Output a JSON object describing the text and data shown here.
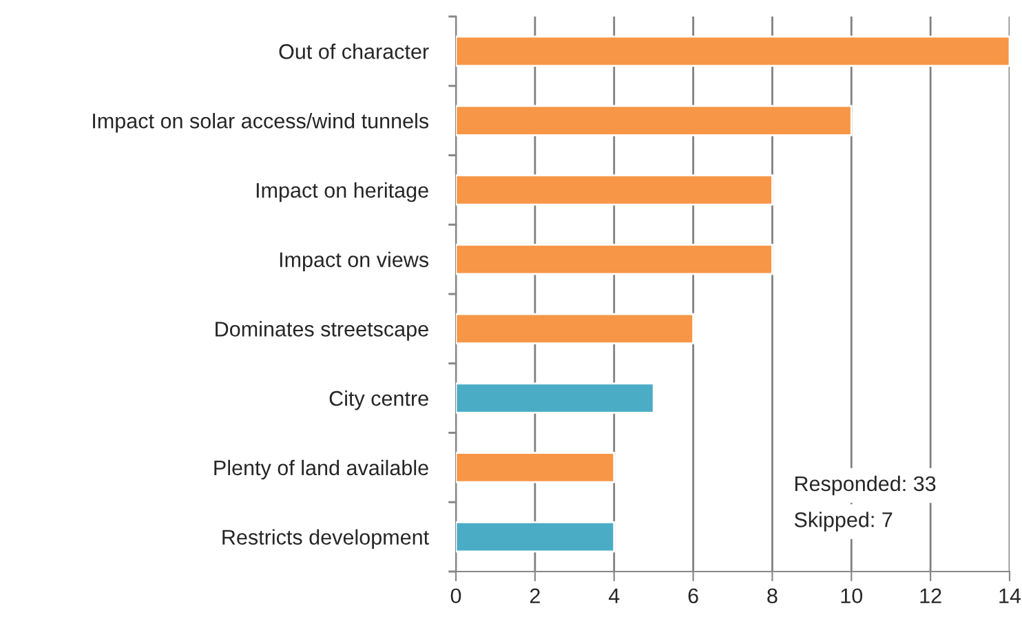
{
  "chart_data": {
    "type": "bar",
    "orientation": "horizontal",
    "categories": [
      "Out of character",
      "Impact on solar access/wind tunnels",
      "Impact on heritage",
      "Impact on views",
      "Dominates streetscape",
      "City centre",
      "Plenty of land available",
      "Restricts development"
    ],
    "values": [
      14,
      10,
      8,
      8,
      6,
      5,
      4,
      4
    ],
    "colors": [
      "#f79646",
      "#f79646",
      "#f79646",
      "#f79646",
      "#f79646",
      "#4bacc6",
      "#f79646",
      "#4bacc6"
    ],
    "xlim": [
      0,
      14
    ],
    "xticks": [
      0,
      2,
      4,
      6,
      8,
      10,
      12,
      14
    ],
    "grid": "x",
    "annotations": [
      "Responded: 33",
      "Skipped: 7"
    ]
  }
}
